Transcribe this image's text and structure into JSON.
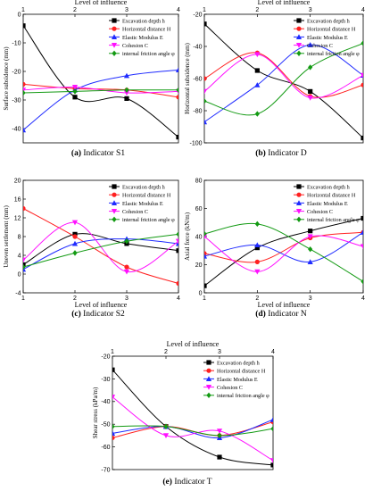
{
  "colors": {
    "black": "#000000",
    "red": "#ff2020",
    "blue": "#1f2bff",
    "magenta": "#ff10ff",
    "green": "#139a13"
  },
  "chart_data": [
    {
      "type": "line",
      "panel": "a",
      "caption": {
        "letter": "(a)",
        "text": "Indicator S1"
      },
      "xlabel": "Level of influence",
      "xlabel_position": "top",
      "ylabel": "Surface subsidence (mm)",
      "x": [
        1,
        2,
        3,
        4
      ],
      "xlim": [
        1,
        4
      ],
      "ylim": [
        -45,
        0
      ],
      "yticks": [
        0,
        -10,
        -20,
        -30,
        -40
      ],
      "legend": "top-right",
      "series": [
        {
          "name": "Excavation depth h",
          "color": "black",
          "marker": "square",
          "values": [
            -4,
            -29,
            -29.5,
            -43
          ]
        },
        {
          "name": "Horizontal distance H",
          "color": "red",
          "marker": "circle",
          "values": [
            -24.5,
            -26,
            -26.5,
            -29
          ]
        },
        {
          "name": "Elastic Modulus E",
          "color": "blue",
          "marker": "triangle-up",
          "values": [
            -40.5,
            -26.5,
            -21.5,
            -19.5
          ]
        },
        {
          "name": "Cohesion C",
          "color": "magenta",
          "marker": "triangle-down",
          "values": [
            -26.5,
            -25.5,
            -27.5,
            -27
          ]
        },
        {
          "name": "internal friction angle φ",
          "color": "green",
          "marker": "diamond",
          "values": [
            -27.5,
            -27,
            -26.5,
            -26.5
          ]
        }
      ]
    },
    {
      "type": "line",
      "panel": "b",
      "caption": {
        "letter": "(b)",
        "text": "Indicator D"
      },
      "xlabel": "Level of influence",
      "xlabel_position": "top",
      "ylabel": "Horizontal subsidence (mm)",
      "x": [
        1,
        2,
        3,
        4
      ],
      "xlim": [
        1,
        4
      ],
      "ylim": [
        -100,
        -20
      ],
      "yticks": [
        -20,
        -40,
        -60,
        -80,
        -100
      ],
      "legend": "top-right",
      "series": [
        {
          "name": "Excavation depth h",
          "color": "black",
          "marker": "square",
          "values": [
            -26,
            -55,
            -68,
            -97
          ]
        },
        {
          "name": "Horizontal distance H",
          "color": "red",
          "marker": "circle",
          "values": [
            -60,
            -44,
            -71,
            -64
          ]
        },
        {
          "name": "Elastic Modulus E",
          "color": "blue",
          "marker": "triangle-up",
          "values": [
            -87,
            -64,
            -39,
            -58
          ]
        },
        {
          "name": "Cohesion C",
          "color": "magenta",
          "marker": "triangle-down",
          "values": [
            -68,
            -45,
            -72,
            -58
          ]
        },
        {
          "name": "internal friction angle φ",
          "color": "green",
          "marker": "diamond",
          "values": [
            -74,
            -82,
            -53,
            -38
          ]
        }
      ]
    },
    {
      "type": "line",
      "panel": "c",
      "caption": {
        "letter": "(c)",
        "text": "Indicator S2"
      },
      "xlabel": "Level of influence",
      "xlabel_position": "bottom",
      "ylabel": "Uneven settlement (mm)",
      "x": [
        1,
        2,
        3,
        4
      ],
      "xlim": [
        1,
        4
      ],
      "ylim": [
        -4,
        20
      ],
      "yticks": [
        -4,
        0,
        4,
        8,
        12,
        16,
        20
      ],
      "legend": "top-right",
      "series": [
        {
          "name": "Excavation depth h",
          "color": "black",
          "marker": "square",
          "values": [
            2,
            8.5,
            6.5,
            5
          ]
        },
        {
          "name": "Horizontal distance H",
          "color": "red",
          "marker": "circle",
          "values": [
            14,
            8,
            1.5,
            -2
          ]
        },
        {
          "name": "Elastic Modulus E",
          "color": "blue",
          "marker": "triangle-up",
          "values": [
            1,
            6.5,
            7.5,
            6.5
          ]
        },
        {
          "name": "Cohesion C",
          "color": "magenta",
          "marker": "triangle-down",
          "values": [
            3,
            11,
            0.5,
            7
          ]
        },
        {
          "name": "internal friction angle φ",
          "color": "green",
          "marker": "diamond",
          "values": [
            1.5,
            4.5,
            7,
            8.5
          ]
        }
      ]
    },
    {
      "type": "line",
      "panel": "d",
      "caption": {
        "letter": "(d)",
        "text": "Indicator N"
      },
      "xlabel": "Level of influence",
      "xlabel_position": "bottom",
      "ylabel": "Axial force (kN/m)",
      "x": [
        1,
        2,
        3,
        4
      ],
      "xlim": [
        1,
        4
      ],
      "ylim": [
        0,
        80
      ],
      "yticks": [
        0,
        20,
        40,
        60,
        80
      ],
      "legend": "top-right",
      "series": [
        {
          "name": "Excavation depth h",
          "color": "black",
          "marker": "square",
          "values": [
            5,
            32,
            44,
            53
          ]
        },
        {
          "name": "Horizontal distance H",
          "color": "red",
          "marker": "circle",
          "values": [
            28,
            22,
            39,
            43
          ]
        },
        {
          "name": "Elastic Modulus E",
          "color": "blue",
          "marker": "triangle-up",
          "values": [
            26,
            34,
            22,
            43
          ]
        },
        {
          "name": "Cohesion C",
          "color": "magenta",
          "marker": "triangle-down",
          "values": [
            40,
            15,
            40,
            33
          ]
        },
        {
          "name": "internal friction angle φ",
          "color": "green",
          "marker": "diamond",
          "values": [
            42,
            49,
            31,
            8
          ]
        }
      ]
    },
    {
      "type": "line",
      "panel": "e",
      "caption": {
        "letter": "(e)",
        "text": "Indicator T"
      },
      "xlabel": "Level of influence",
      "xlabel_position": "top",
      "ylabel": "Shear stress (kPa/m)",
      "x": [
        1,
        2,
        3,
        4
      ],
      "xlim": [
        1,
        4
      ],
      "ylim": [
        -70,
        -20
      ],
      "yticks": [
        -20,
        -30,
        -40,
        -50,
        -60,
        -70
      ],
      "legend": "top-right",
      "series": [
        {
          "name": "Excavation depth h",
          "color": "black",
          "marker": "square",
          "values": [
            -26,
            -51,
            -64.5,
            -68
          ]
        },
        {
          "name": "Horizontal distance H",
          "color": "red",
          "marker": "circle",
          "values": [
            -56,
            -51,
            -55,
            -49
          ]
        },
        {
          "name": "Elastic Modulus E",
          "color": "blue",
          "marker": "triangle-up",
          "values": [
            -54,
            -51,
            -56,
            -48
          ]
        },
        {
          "name": "Cohesion C",
          "color": "magenta",
          "marker": "triangle-down",
          "values": [
            -38,
            -55,
            -53,
            -66
          ]
        },
        {
          "name": "internal friction angle φ",
          "color": "green",
          "marker": "diamond",
          "values": [
            -51,
            -51,
            -55,
            -52
          ]
        }
      ]
    }
  ]
}
